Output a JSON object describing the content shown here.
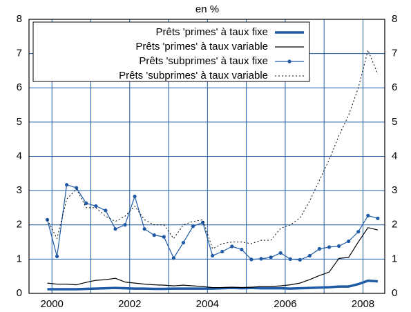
{
  "chart_data": {
    "type": "line",
    "title": "en %",
    "x": [
      1999.88,
      2000.13,
      2000.38,
      2000.63,
      2000.88,
      2001.13,
      2001.38,
      2001.63,
      2001.88,
      2002.13,
      2002.38,
      2002.63,
      2002.88,
      2003.13,
      2003.38,
      2003.63,
      2003.88,
      2004.13,
      2004.38,
      2004.63,
      2004.88,
      2005.13,
      2005.38,
      2005.63,
      2005.88,
      2006.13,
      2006.38,
      2006.63,
      2006.88,
      2007.13,
      2007.38,
      2007.63,
      2007.88,
      2008.13,
      2008.38
    ],
    "series": [
      {
        "name": "Prêts 'primes' à taux fixe",
        "color": "#1f5aa6",
        "width": 3.5,
        "dash": "none",
        "marker": false,
        "values": [
          0.12,
          0.12,
          0.12,
          0.12,
          0.13,
          0.14,
          0.15,
          0.16,
          0.15,
          0.14,
          0.14,
          0.13,
          0.13,
          0.14,
          0.14,
          0.14,
          0.14,
          0.14,
          0.15,
          0.16,
          0.15,
          0.16,
          0.15,
          0.15,
          0.15,
          0.14,
          0.15,
          0.16,
          0.17,
          0.18,
          0.2,
          0.2,
          0.27,
          0.37,
          0.35
        ]
      },
      {
        "name": "Prêts 'primes' à taux variable",
        "color": "#000000",
        "width": 1.2,
        "dash": "none",
        "marker": false,
        "values": [
          0.3,
          0.27,
          0.27,
          0.25,
          0.32,
          0.38,
          0.4,
          0.44,
          0.33,
          0.3,
          0.27,
          0.25,
          0.24,
          0.22,
          0.24,
          0.22,
          0.2,
          0.17,
          0.17,
          0.18,
          0.17,
          0.18,
          0.2,
          0.2,
          0.22,
          0.25,
          0.3,
          0.4,
          0.52,
          0.62,
          1.02,
          1.05,
          1.5,
          1.92,
          1.85
        ]
      },
      {
        "name": "Prêts 'subprimes' à taux fixe",
        "color": "#1f5aa6",
        "width": 1.2,
        "dash": "none",
        "marker": true,
        "values": [
          2.15,
          1.08,
          3.17,
          3.08,
          2.63,
          2.55,
          2.42,
          1.88,
          2.0,
          2.83,
          1.88,
          1.7,
          1.65,
          1.03,
          1.48,
          1.96,
          2.07,
          1.1,
          1.22,
          1.37,
          1.28,
          0.99,
          1.01,
          1.05,
          1.18,
          1.0,
          0.98,
          1.1,
          1.3,
          1.35,
          1.38,
          1.52,
          1.8,
          2.27,
          2.19
        ]
      },
      {
        "name": "Prêts 'subprimes' à taux variable",
        "color": "#000000",
        "width": 1,
        "dash": "2 3",
        "marker": false,
        "values": [
          2.15,
          1.6,
          2.75,
          3.05,
          2.5,
          2.5,
          2.25,
          2.1,
          2.25,
          2.55,
          2.15,
          2.0,
          2.0,
          1.6,
          2.0,
          2.1,
          2.15,
          1.3,
          1.45,
          1.5,
          1.5,
          1.45,
          1.55,
          1.55,
          1.9,
          2.0,
          2.2,
          2.7,
          3.3,
          3.9,
          4.6,
          5.2,
          6.0,
          7.1,
          6.4
        ]
      }
    ],
    "xlim": [
      1999.41,
      2008.56
    ],
    "xticks": [
      2000,
      2002,
      2004,
      2006,
      2008
    ],
    "x_minor_ticks": [
      2001,
      2003,
      2005,
      2007
    ],
    "ylim": [
      0,
      8
    ],
    "yticks": [
      0,
      1,
      2,
      3,
      4,
      5,
      6,
      7,
      8
    ],
    "grid": true,
    "grid_color": "#1f5aa6",
    "legend": "upper-left"
  }
}
